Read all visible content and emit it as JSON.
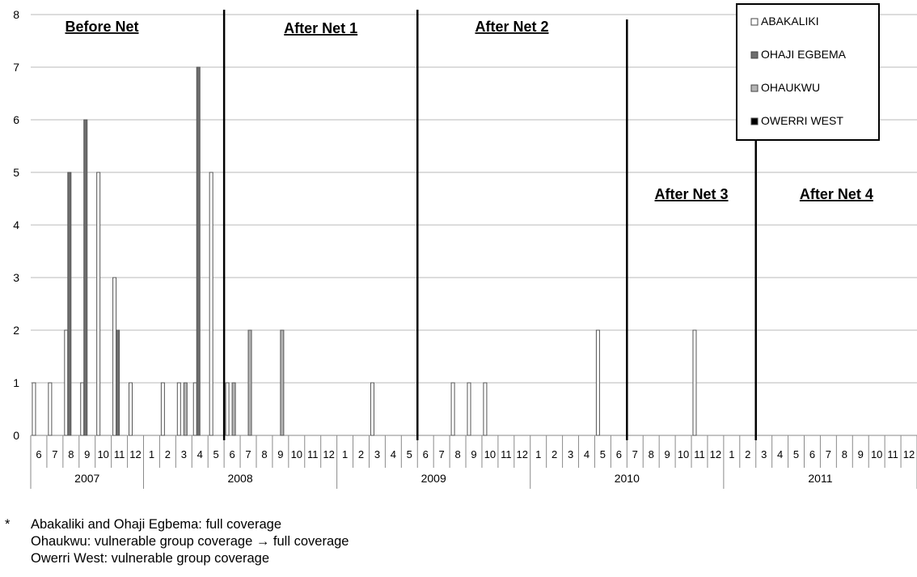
{
  "chart_data": {
    "type": "bar",
    "y_axis": {
      "ylim": [
        0,
        8
      ],
      "ticks": [
        0,
        1,
        2,
        3,
        4,
        5,
        6,
        7,
        8
      ],
      "grid": true
    },
    "x_axis": {
      "years": [
        {
          "year": "2007",
          "months": [
            6,
            7,
            8,
            9,
            10,
            11,
            12
          ]
        },
        {
          "year": "2008",
          "months": [
            1,
            2,
            3,
            4,
            5,
            6,
            7,
            8,
            9,
            10,
            11,
            12
          ]
        },
        {
          "year": "2009",
          "months": [
            1,
            2,
            3,
            4,
            5,
            6,
            7,
            8,
            9,
            10,
            11,
            12
          ]
        },
        {
          "year": "2010",
          "months": [
            1,
            2,
            3,
            4,
            5,
            6,
            7,
            8,
            9,
            10,
            11,
            12
          ]
        },
        {
          "year": "2011",
          "months": [
            1,
            2,
            3,
            4,
            5,
            6,
            7,
            8,
            9,
            10,
            11,
            12
          ]
        }
      ]
    },
    "series": [
      {
        "name": "ABAKALIKI",
        "color": "#ffffff",
        "values": [
          1,
          1,
          2,
          1,
          5,
          3,
          1,
          0,
          1,
          1,
          1,
          5,
          1,
          0,
          0,
          0,
          0,
          0,
          0,
          0,
          0,
          1,
          0,
          0,
          0,
          0,
          1,
          1,
          1,
          0,
          0,
          0,
          0,
          0,
          0,
          2,
          0,
          0,
          0,
          0,
          0,
          2,
          0,
          0,
          0,
          0,
          0,
          0,
          0,
          0,
          0,
          0,
          0,
          0,
          0
        ]
      },
      {
        "name": "OHAJI EGBEMA",
        "color": "#6e6e6e",
        "values": [
          0,
          0,
          5,
          6,
          0,
          2,
          0,
          0,
          0,
          0,
          7,
          0,
          0,
          0,
          0,
          0,
          0,
          0,
          0,
          0,
          0,
          0,
          0,
          0,
          0,
          0,
          0,
          0,
          0,
          0,
          0,
          0,
          0,
          0,
          0,
          0,
          0,
          0,
          0,
          0,
          0,
          0,
          0,
          0,
          0,
          0,
          0,
          0,
          0,
          0,
          0,
          0,
          0,
          0,
          0
        ]
      },
      {
        "name": "OHAUKWU",
        "color": "#b4b4b4",
        "values": [
          0,
          0,
          0,
          0,
          0,
          0,
          0,
          0,
          0,
          1,
          0,
          0,
          1,
          2,
          0,
          2,
          0,
          0,
          0,
          0,
          0,
          0,
          0,
          0,
          0,
          0,
          0,
          0,
          0,
          0,
          0,
          0,
          0,
          0,
          0,
          0,
          0,
          0,
          0,
          0,
          0,
          0,
          0,
          0,
          0,
          0,
          0,
          0,
          0,
          0,
          0,
          0,
          0,
          0,
          0
        ]
      },
      {
        "name": "OWERRI WEST",
        "color": "#000000",
        "values": [
          0,
          0,
          0,
          0,
          0,
          0,
          0,
          0,
          0,
          0,
          0,
          0,
          0,
          0,
          0,
          0,
          0,
          0,
          0,
          0,
          0,
          0,
          0,
          0,
          0,
          0,
          0,
          0,
          0,
          0,
          0,
          0,
          0,
          0,
          0,
          0,
          0,
          0,
          0,
          0,
          0,
          0,
          0,
          0,
          0,
          0,
          0,
          0,
          0,
          0,
          0,
          0,
          0,
          0,
          0
        ]
      }
    ],
    "phases": [
      {
        "label": "Before Net"
      },
      {
        "label": "After Net 1"
      },
      {
        "label": "After Net 2"
      },
      {
        "label": "After Net 3"
      },
      {
        "label": "After Net 4"
      }
    ],
    "net_distributions": [
      {
        "year": "2008",
        "month": 5.5
      },
      {
        "year": "2009",
        "month": 5.5
      },
      {
        "year": "2010",
        "month": 6.5
      },
      {
        "year": "2011",
        "month": 2.5
      }
    ],
    "legend_position": "top-right"
  },
  "footnote": {
    "star": "*",
    "lines": [
      "Abakaliki and Ohaji Egbema: full coverage",
      "Ohaukwu: vulnerable group coverage → full coverage",
      "Owerri West: vulnerable group coverage"
    ]
  }
}
